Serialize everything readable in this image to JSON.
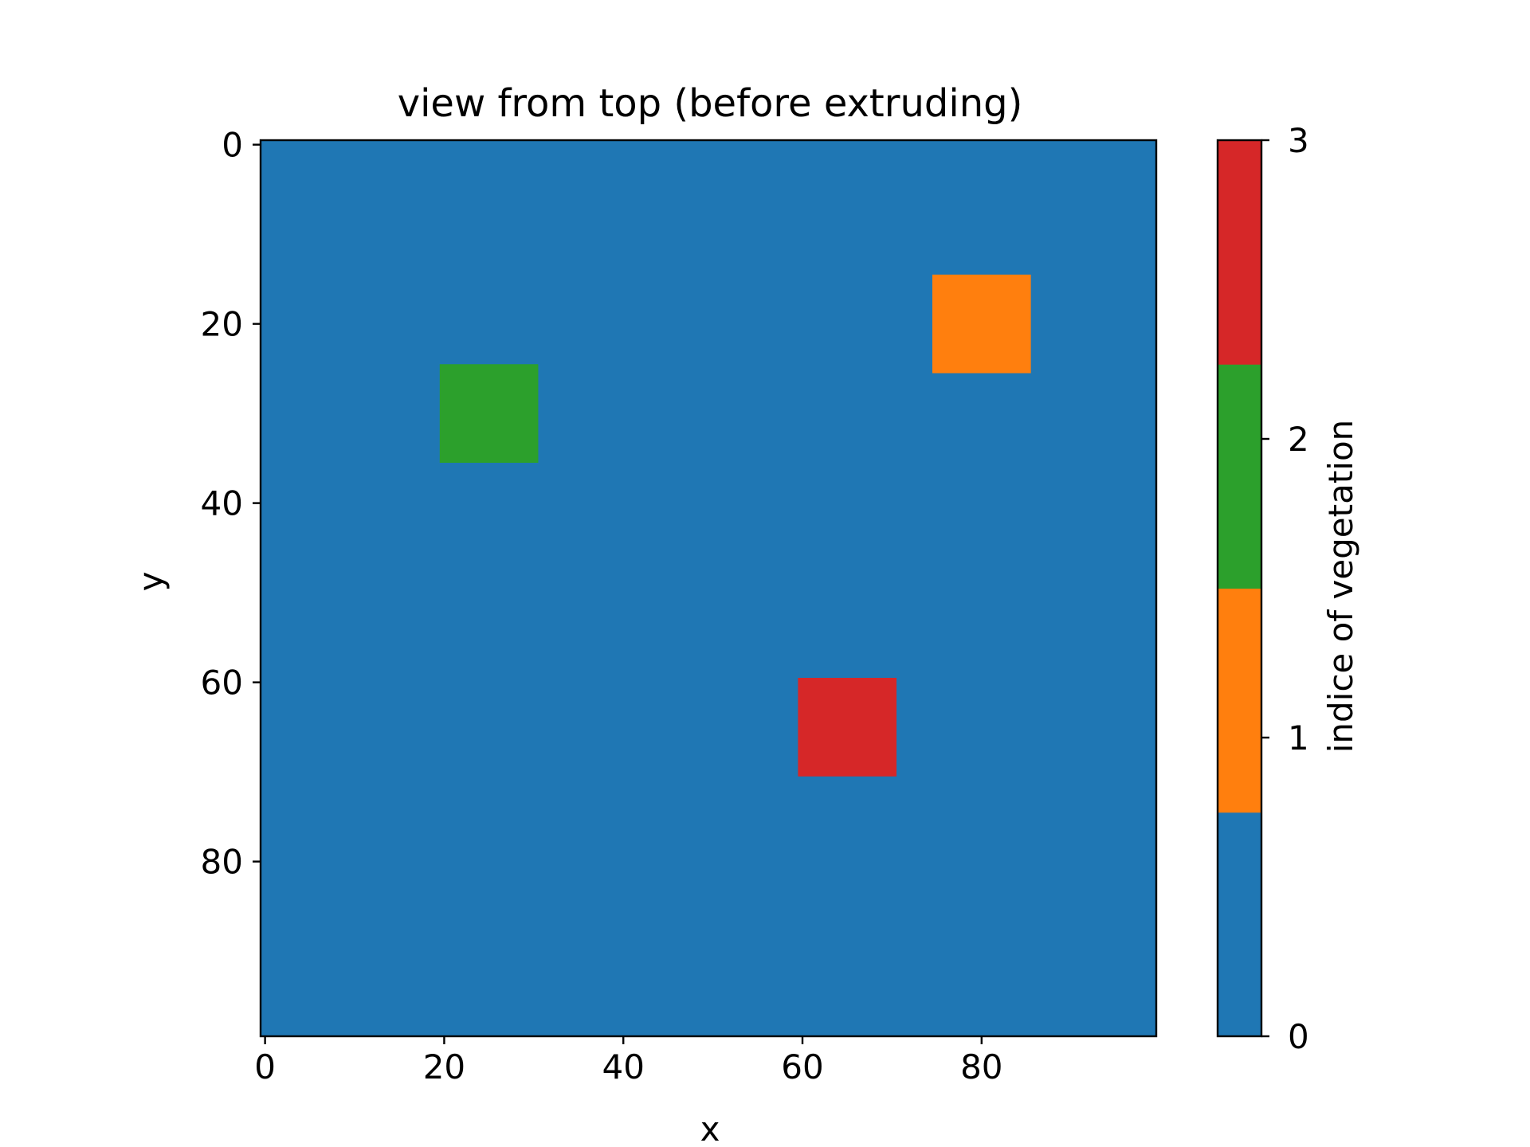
{
  "chart_data": {
    "type": "heatmap",
    "title": "view from top (before extruding)",
    "xlabel": "x",
    "ylabel": "y",
    "xlim": [
      -0.5,
      99.5
    ],
    "ylim": [
      99.5,
      -0.5
    ],
    "grid": false,
    "x_ticks": [
      0,
      20,
      40,
      60,
      80
    ],
    "y_ticks": [
      0,
      20,
      40,
      60,
      80
    ],
    "background_value": 0,
    "regions": [
      {
        "value": 1,
        "x_range": [
          75,
          85
        ],
        "y_range": [
          15,
          25
        ]
      },
      {
        "value": 2,
        "x_range": [
          20,
          30
        ],
        "y_range": [
          25,
          35
        ]
      },
      {
        "value": 3,
        "x_range": [
          60,
          70
        ],
        "y_range": [
          60,
          70
        ]
      }
    ],
    "colorbar": {
      "label": "indice of vegetation",
      "range": [
        0,
        3
      ],
      "ticks": [
        0,
        1,
        2,
        3
      ],
      "levels": [
        {
          "value": 0,
          "color": "#1f77b4"
        },
        {
          "value": 1,
          "color": "#ff7f0e"
        },
        {
          "value": 2,
          "color": "#2ca02c"
        },
        {
          "value": 3,
          "color": "#d62728"
        }
      ]
    }
  }
}
